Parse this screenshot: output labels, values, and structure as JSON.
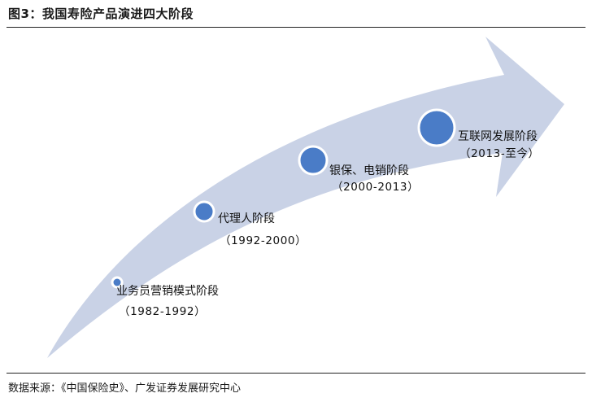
{
  "figure": {
    "title": "图3：我国寿险产品演进四大阶段",
    "source": "数据来源：《中国保险史》、广发证券发展研究中心"
  },
  "stages": [
    {
      "name": "业务员营销模式阶段",
      "period": "（1982-1992）"
    },
    {
      "name": "代理人阶段",
      "period": "（1992-2000）"
    },
    {
      "name": "银保、电销阶段",
      "period": "（2000-2013）"
    },
    {
      "name": "互联网发展阶段",
      "period": "（2013-至今）"
    }
  ],
  "colors": {
    "arrow": "#c9d2e6",
    "dot_fill": "#4a7cc7",
    "dot_ring": "#ffffff",
    "rule": "#222222"
  }
}
